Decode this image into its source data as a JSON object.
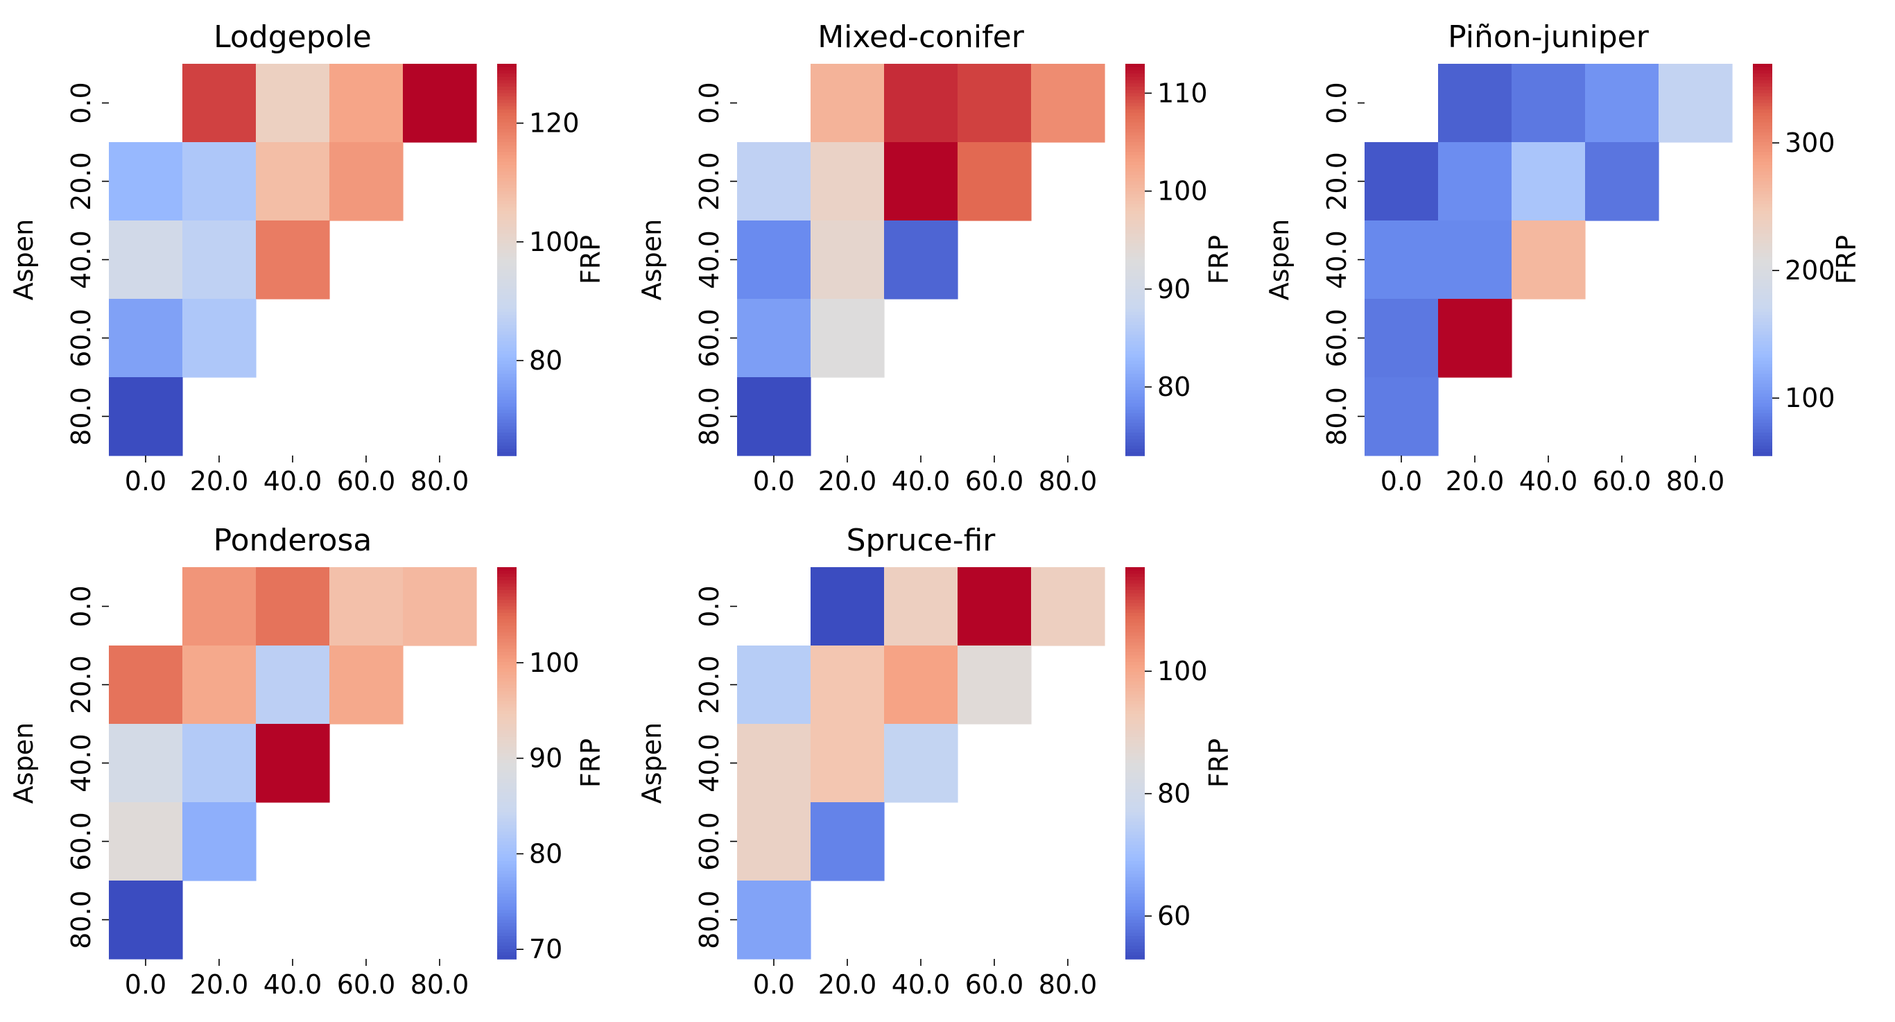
{
  "colormap": {
    "name": "coolwarm",
    "stops": [
      "#3b4cc0",
      "#6a8bef",
      "#9abbff",
      "#c9d7f0",
      "#dddcdc",
      "#f2cbb7",
      "#f6a385",
      "#e26952",
      "#b40426"
    ]
  },
  "chart_data": [
    {
      "type": "heatmap",
      "title": "Lodgepole",
      "xlabel": "",
      "ylabel": "Aspen",
      "colorbar_label": "FRP",
      "x_ticks": [
        "0.0",
        "20.0",
        "40.0",
        "60.0",
        "80.0"
      ],
      "y_ticks": [
        "0.0",
        "20.0",
        "40.0",
        "60.0",
        "80.0"
      ],
      "vmin": 64,
      "vmax": 130,
      "colorbar_ticks": [
        80,
        100,
        120
      ],
      "values": [
        [
          null,
          125,
          103,
          113,
          130
        ],
        [
          80,
          84,
          108,
          115,
          null
        ],
        [
          92,
          87,
          119,
          null,
          null
        ],
        [
          76,
          84,
          null,
          null,
          null
        ],
        [
          64,
          null,
          null,
          null,
          null
        ]
      ]
    },
    {
      "type": "heatmap",
      "title": "Mixed-conifer",
      "xlabel": "",
      "ylabel": "Aspen",
      "colorbar_label": "FRP",
      "x_ticks": [
        "0.0",
        "20.0",
        "40.0",
        "60.0",
        "80.0"
      ],
      "y_ticks": [
        "0.0",
        "20.0",
        "40.0",
        "60.0",
        "80.0"
      ],
      "vmin": 73,
      "vmax": 113,
      "colorbar_ticks": [
        80,
        90,
        100,
        110
      ],
      "values": [
        [
          null,
          101,
          111,
          110,
          105
        ],
        [
          87,
          96,
          113,
          108,
          null
        ],
        [
          78,
          95,
          75,
          null,
          null
        ],
        [
          80,
          93,
          null,
          null,
          null
        ],
        [
          73,
          null,
          null,
          null,
          null
        ]
      ]
    },
    {
      "type": "heatmap",
      "title": "Piñon-juniper",
      "xlabel": "",
      "ylabel": "Aspen",
      "colorbar_label": "FRP",
      "x_ticks": [
        "0.0",
        "20.0",
        "40.0",
        "60.0",
        "80.0"
      ],
      "y_ticks": [
        "0.0",
        "20.0",
        "40.0",
        "60.0",
        "80.0"
      ],
      "vmin": 55,
      "vmax": 362,
      "colorbar_ticks": [
        100,
        200,
        300
      ],
      "values": [
        [
          null,
          68,
          82,
          100,
          165
        ],
        [
          62,
          95,
          145,
          80,
          null
        ],
        [
          92,
          92,
          265,
          null,
          null
        ],
        [
          82,
          362,
          null,
          null,
          null
        ],
        [
          84,
          null,
          null,
          null,
          null
        ]
      ]
    },
    {
      "type": "heatmap",
      "title": "Ponderosa",
      "xlabel": "",
      "ylabel": "Aspen",
      "colorbar_label": "FRP",
      "x_ticks": [
        "0.0",
        "20.0",
        "40.0",
        "60.0",
        "80.0"
      ],
      "y_ticks": [
        "0.0",
        "20.0",
        "40.0",
        "60.0",
        "80.0"
      ],
      "vmin": 69,
      "vmax": 110,
      "colorbar_ticks": [
        70,
        80,
        90,
        100
      ],
      "values": [
        [
          null,
          101,
          104,
          96,
          97
        ],
        [
          104,
          99,
          83,
          99,
          null
        ],
        [
          87,
          82,
          110,
          null,
          null
        ],
        [
          90,
          78,
          null,
          null,
          null
        ],
        [
          69,
          null,
          null,
          null,
          null
        ]
      ]
    },
    {
      "type": "heatmap",
      "title": "Spruce-fir",
      "xlabel": "",
      "ylabel": "Aspen",
      "colorbar_label": "FRP",
      "x_ticks": [
        "0.0",
        "20.0",
        "40.0",
        "60.0",
        "80.0"
      ],
      "y_ticks": [
        "0.0",
        "20.0",
        "40.0",
        "60.0",
        "80.0"
      ],
      "vmin": 53,
      "vmax": 117,
      "colorbar_ticks": [
        60,
        80,
        100
      ],
      "values": [
        [
          null,
          53,
          91,
          117,
          91
        ],
        [
          74,
          94,
          101,
          86,
          null
        ],
        [
          90,
          94,
          76,
          null,
          null
        ],
        [
          90,
          60,
          null,
          null,
          null
        ],
        [
          65,
          null,
          null,
          null,
          null
        ]
      ]
    }
  ]
}
